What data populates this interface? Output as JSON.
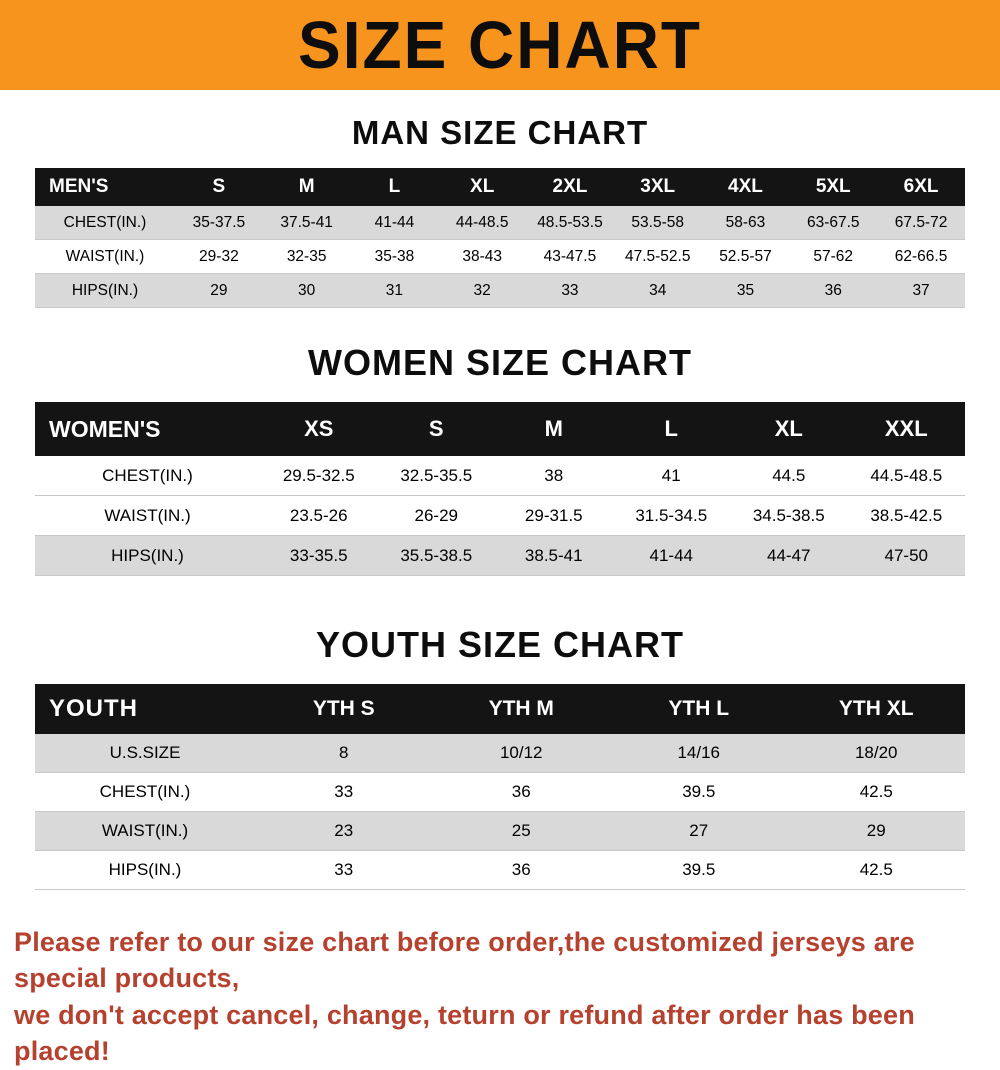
{
  "banner": {
    "title": "SIZE CHART"
  },
  "colors": {
    "banner_bg": "#f7941d",
    "table_header_bg": "#141414",
    "row_shaded": "#d9d9d9",
    "footer_text": "#b5412f"
  },
  "sections": [
    {
      "title": "MAN SIZE CHART",
      "table": {
        "header_label": "MEN'S",
        "columns": [
          "S",
          "M",
          "L",
          "XL",
          "2XL",
          "3XL",
          "4XL",
          "5XL",
          "6XL"
        ],
        "rows": [
          {
            "label": "CHEST(IN.)",
            "values": [
              "35-37.5",
              "37.5-41",
              "41-44",
              "44-48.5",
              "48.5-53.5",
              "53.5-58",
              "58-63",
              "63-67.5",
              "67.5-72"
            ]
          },
          {
            "label": "WAIST(IN.)",
            "values": [
              "29-32",
              "32-35",
              "35-38",
              "38-43",
              "43-47.5",
              "47.5-52.5",
              "52.5-57",
              "57-62",
              "62-66.5"
            ]
          },
          {
            "label": "HIPS(IN.)",
            "values": [
              "29",
              "30",
              "31",
              "32",
              "33",
              "34",
              "35",
              "36",
              "37"
            ]
          }
        ]
      }
    },
    {
      "title": "WOMEN SIZE CHART",
      "table": {
        "header_label": "WOMEN'S",
        "columns": [
          "XS",
          "S",
          "M",
          "L",
          "XL",
          "XXL"
        ],
        "rows": [
          {
            "label": "CHEST(IN.)",
            "values": [
              "29.5-32.5",
              "32.5-35.5",
              "38",
              "41",
              "44.5",
              "44.5-48.5"
            ]
          },
          {
            "label": "WAIST(IN.)",
            "values": [
              "23.5-26",
              "26-29",
              "29-31.5",
              "31.5-34.5",
              "34.5-38.5",
              "38.5-42.5"
            ]
          },
          {
            "label": "HIPS(IN.)",
            "values": [
              "33-35.5",
              "35.5-38.5",
              "38.5-41",
              "41-44",
              "44-47",
              "47-50"
            ]
          }
        ]
      }
    },
    {
      "title": "YOUTH SIZE CHART",
      "table": {
        "header_label": "YOUTH",
        "columns": [
          "YTH S",
          "YTH M",
          "YTH L",
          "YTH XL"
        ],
        "rows": [
          {
            "label": "U.S.SIZE",
            "values": [
              "8",
              "10/12",
              "14/16",
              "18/20"
            ]
          },
          {
            "label": "CHEST(IN.)",
            "values": [
              "33",
              "36",
              "39.5",
              "42.5"
            ]
          },
          {
            "label": "WAIST(IN.)",
            "values": [
              "23",
              "25",
              "27",
              "29"
            ]
          },
          {
            "label": "HIPS(IN.)",
            "values": [
              "33",
              "36",
              "39.5",
              "42.5"
            ]
          }
        ]
      }
    }
  ],
  "footer": {
    "line1": "Please refer to our size chart before order,the customized jerseys are special products,",
    "line2": "we don't accept cancel, change, teturn or refund after order has been placed!"
  }
}
